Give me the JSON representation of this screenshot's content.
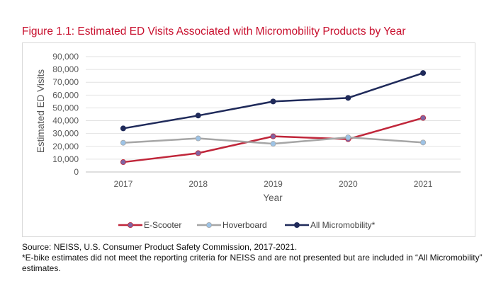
{
  "figure_title": "Figure 1.1: Estimated ED Visits Associated with Micromobility Products by Year",
  "source_note": "Source: NEISS, U.S. Consumer Product Safety Commission, 2017-2021.",
  "footnote": "*E-bike estimates did not meet the reporting criteria for NEISS and are not presented but are included in “All Micromobility” estimates.",
  "chart_data": {
    "type": "line",
    "title": "Figure 1.1: Estimated ED Visits Associated with Micromobility Products by Year",
    "xlabel": "Year",
    "ylabel": "Estimated ED Visits",
    "x": [
      "2017",
      "2018",
      "2019",
      "2020",
      "2021"
    ],
    "ylim": [
      0,
      90000
    ],
    "yticks": [
      "0",
      "10,000",
      "20,000",
      "30,000",
      "40,000",
      "50,000",
      "60,000",
      "70,000",
      "80,000",
      "90,000"
    ],
    "grid": true,
    "legend_position": "bottom",
    "series": [
      {
        "name": "E-Scooter",
        "values": [
          7700,
          14700,
          27800,
          25600,
          42200
        ],
        "color": "#c0263a",
        "marker_color": "#8064a2"
      },
      {
        "name": "Hoverboard",
        "values": [
          22800,
          26200,
          22000,
          27000,
          23000
        ],
        "color": "#a6a6a6",
        "marker_color": "#9dc3e6"
      },
      {
        "name": "All Micromobility*",
        "values": [
          34000,
          44000,
          55000,
          57800,
          77200
        ],
        "color": "#1f2a5a",
        "marker_color": "#1f2a5a"
      }
    ]
  }
}
